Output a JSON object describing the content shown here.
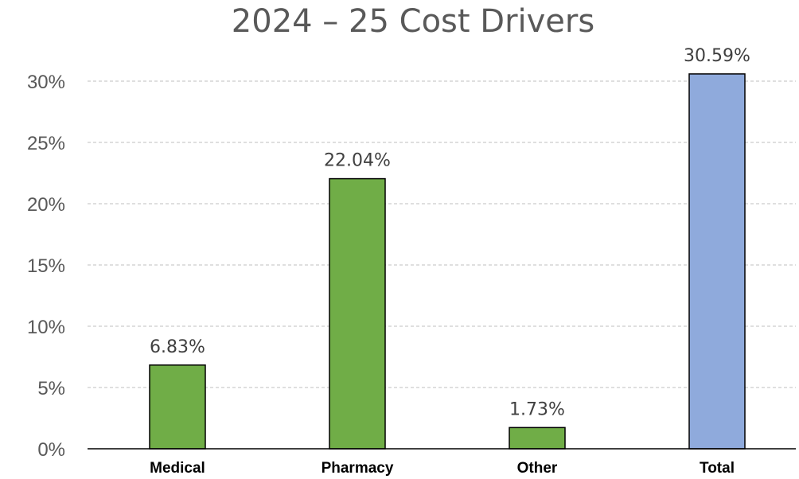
{
  "chart_data": {
    "type": "bar",
    "title": "2024 – 25 Cost Drivers",
    "xlabel": "",
    "ylabel": "",
    "categories": [
      "Medical",
      "Pharmacy",
      "Other",
      "Total"
    ],
    "values": [
      6.83,
      22.04,
      1.73,
      30.59
    ],
    "data_labels": [
      "6.83%",
      "22.04%",
      "1.73%",
      "30.59%"
    ],
    "bar_colors": [
      "#70ad47",
      "#70ad47",
      "#70ad47",
      "#8faadc"
    ],
    "ylim": [
      0,
      30
    ],
    "y_ticks": [
      0,
      5,
      10,
      15,
      20,
      25,
      30
    ],
    "y_tick_labels": [
      "0%",
      "5%",
      "10%",
      "15%",
      "20%",
      "25%",
      "30%"
    ],
    "grid": true,
    "legend": "none"
  }
}
